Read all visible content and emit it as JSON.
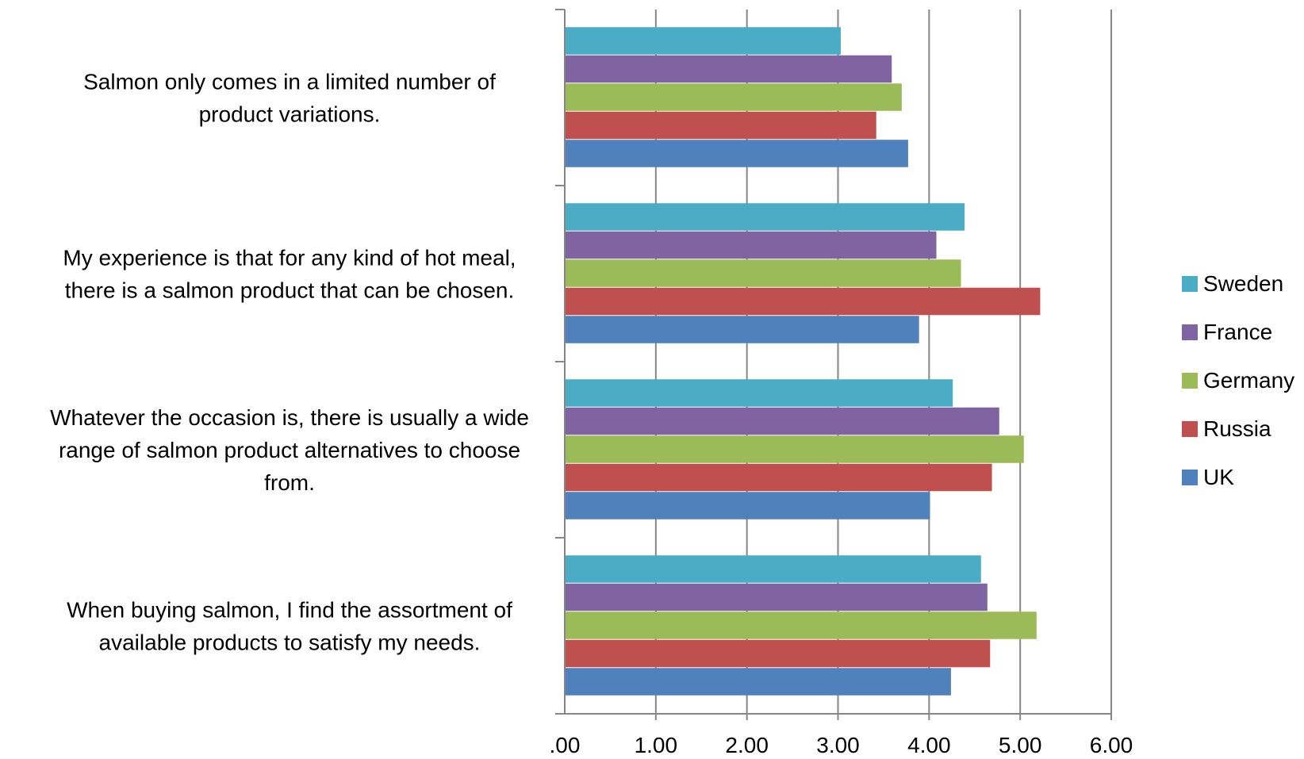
{
  "chart_data": {
    "type": "bar",
    "orientation": "horizontal",
    "categories": [
      [
        "Salmon only comes in a limited number of",
        "product variations."
      ],
      [
        "My experience is that  for any kind of hot meal,",
        "there is a salmon product that can be chosen."
      ],
      [
        "Whatever the occasion is, there is usually a wide",
        "range of salmon product alternatives to choose",
        "from."
      ],
      [
        "When buying salmon, I find the assortment of",
        "available products to satisfy my needs."
      ]
    ],
    "series": [
      {
        "name": "Sweden",
        "color": "#4BACC6",
        "values": [
          3.03,
          4.39,
          4.26,
          4.57
        ]
      },
      {
        "name": "France",
        "color": "#8064A2",
        "values": [
          3.59,
          4.08,
          4.77,
          4.64
        ]
      },
      {
        "name": "Germany",
        "color": "#9BBB59",
        "values": [
          3.7,
          4.35,
          5.04,
          5.18
        ]
      },
      {
        "name": "Russia",
        "color": "#C0504D",
        "values": [
          3.42,
          5.22,
          4.69,
          4.67
        ]
      },
      {
        "name": "UK",
        "color": "#4F81BD",
        "values": [
          3.77,
          3.89,
          4.01,
          4.24
        ]
      }
    ],
    "xlim": [
      0,
      6
    ],
    "xticks": [
      ".00",
      "1.00",
      "2.00",
      "3.00",
      "4.00",
      "5.00",
      "6.00"
    ],
    "grid": true,
    "legend": "right"
  }
}
